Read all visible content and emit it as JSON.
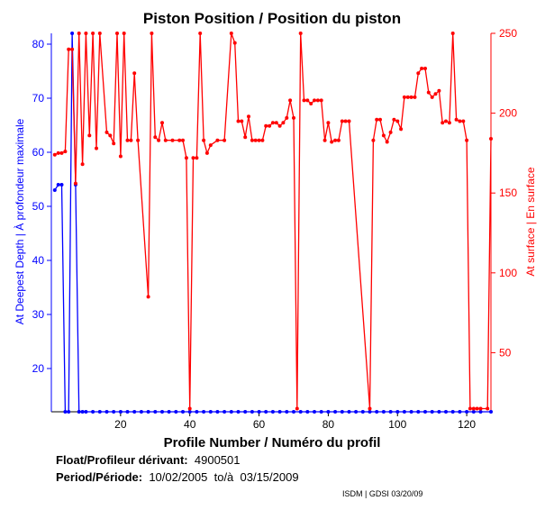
{
  "chart_data": {
    "type": "line",
    "title": "Piston Position / Position du piston",
    "xlabel": "Profile Number / Numéro du profil",
    "ylabel_left": "At Deepest Depth | À profondeur maximale",
    "ylabel_right": "At surface | En surface",
    "xlim": [
      0,
      127
    ],
    "ylim_left": [
      12,
      82
    ],
    "ylim_right": [
      13,
      250
    ],
    "x_ticks": [
      20,
      40,
      60,
      80,
      100,
      120
    ],
    "y_ticks_left": [
      20,
      30,
      40,
      50,
      60,
      70,
      80
    ],
    "y_ticks_right": [
      50,
      100,
      150,
      200,
      250
    ],
    "grid": false,
    "colors": {
      "left": "#0000ff",
      "right": "#ff0000",
      "axis": "#000000"
    },
    "series": [
      {
        "axis": "left",
        "color": "#0000ff",
        "x": [
          1,
          2,
          3,
          4,
          5,
          6,
          7,
          8,
          9,
          10,
          12,
          14,
          16,
          18,
          20,
          22,
          24,
          26,
          28,
          30,
          32,
          34,
          36,
          38,
          40,
          42,
          44,
          46,
          48,
          50,
          52,
          54,
          56,
          58,
          60,
          62,
          64,
          66,
          68,
          70,
          72,
          74,
          76,
          78,
          80,
          82,
          84,
          86,
          88,
          90,
          92,
          94,
          96,
          98,
          100,
          102,
          104,
          106,
          108,
          110,
          112,
          114,
          116,
          118,
          120,
          122,
          124,
          127
        ],
        "values": [
          53,
          54,
          54,
          12,
          12,
          82,
          54,
          12,
          12,
          12,
          12,
          12,
          12,
          12,
          12,
          12,
          12,
          12,
          12,
          12,
          12,
          12,
          12,
          12,
          12,
          12,
          12,
          12,
          12,
          12,
          12,
          12,
          12,
          12,
          12,
          12,
          12,
          12,
          12,
          12,
          12,
          12,
          12,
          12,
          12,
          12,
          12,
          12,
          12,
          12,
          12,
          12,
          12,
          12,
          12,
          12,
          12,
          12,
          12,
          12,
          12,
          12,
          12,
          12,
          12,
          12,
          12,
          12
        ]
      },
      {
        "axis": "right",
        "color": "#ff0000",
        "x": [
          1,
          2,
          3,
          4,
          5,
          6,
          7,
          8,
          9,
          10,
          11,
          12,
          13,
          14,
          16,
          17,
          18,
          19,
          20,
          21,
          22,
          23,
          24,
          25,
          28,
          29,
          30,
          31,
          32,
          33,
          35,
          37,
          38,
          39,
          40,
          41,
          42,
          43,
          44,
          45,
          46,
          48,
          50,
          52,
          53,
          54,
          55,
          56,
          57,
          58,
          59,
          60,
          61,
          62,
          63,
          64,
          65,
          66,
          67,
          68,
          69,
          70,
          71,
          72,
          73,
          74,
          75,
          76,
          77,
          78,
          79,
          80,
          81,
          82,
          83,
          84,
          85,
          86,
          92,
          93,
          94,
          95,
          96,
          97,
          98,
          99,
          100,
          101,
          102,
          103,
          104,
          105,
          106,
          107,
          108,
          109,
          110,
          111,
          112,
          113,
          114,
          115,
          116,
          117,
          118,
          119,
          120,
          121,
          122,
          123,
          124,
          126,
          127
        ],
        "values": [
          174,
          175,
          175,
          176,
          240,
          240,
          156,
          250,
          168,
          250,
          186,
          250,
          178,
          250,
          188,
          186,
          181,
          250,
          173,
          250,
          183,
          183,
          225,
          183,
          85,
          250,
          185,
          183,
          194,
          183,
          183,
          183,
          183,
          172,
          15,
          172,
          172,
          250,
          183,
          175,
          180,
          183,
          183,
          250,
          244,
          195,
          195,
          185,
          198,
          183,
          183,
          183,
          183,
          192,
          192,
          194,
          194,
          192,
          194,
          197,
          208,
          197,
          15,
          250,
          208,
          208,
          206,
          208,
          208,
          208,
          183,
          194,
          182,
          183,
          183,
          195,
          195,
          195,
          15,
          183,
          196,
          196,
          186,
          182,
          188,
          196,
          195,
          190,
          210,
          210,
          210,
          210,
          225,
          228,
          228,
          213,
          210,
          212,
          214,
          194,
          195,
          194,
          250,
          196,
          195,
          195,
          183,
          15,
          15,
          15,
          15,
          15,
          184
        ]
      }
    ]
  },
  "info": {
    "float_label": "Float/Profileur dérivant:",
    "float_value": "4900501",
    "period_label": "Period/Période:",
    "period_value": "10/02/2005  to/à  03/15/2009",
    "credit": "ISDM | GDSI 03/20/09"
  }
}
